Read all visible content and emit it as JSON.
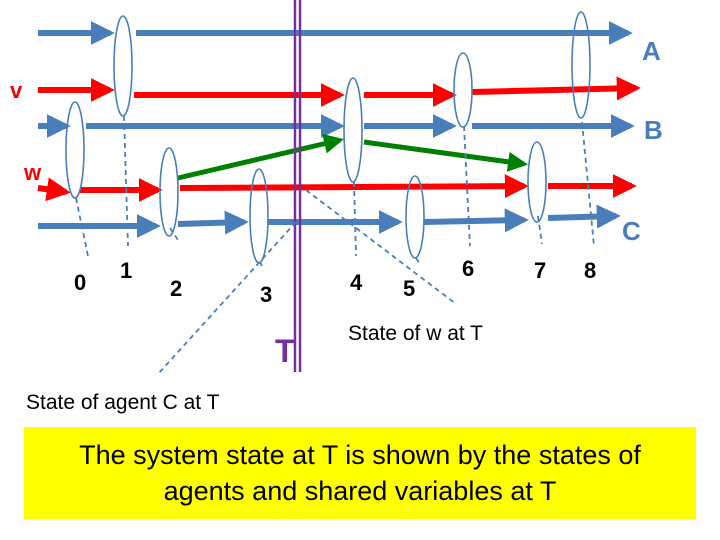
{
  "lines": {
    "A": {
      "label": "A",
      "color": "#4a7ebb"
    },
    "v": {
      "label": "v",
      "color": "#ff0000"
    },
    "B": {
      "label": "B",
      "color": "#4a7ebb"
    },
    "w": {
      "label": "w",
      "color": "#ff0000"
    },
    "C": {
      "label": "C",
      "color": "#4a7ebb"
    }
  },
  "events": [
    "0",
    "1",
    "2",
    "3",
    "4",
    "5",
    "6",
    "7",
    "8"
  ],
  "cut": {
    "label": "T",
    "color": "#7030a0"
  },
  "notes": {
    "state_w": "State of w at T",
    "state_c": "State of agent C at T"
  },
  "caption": "The system state at T is shown by the states of agents and shared variables at T",
  "colors": {
    "agent": "#4a7ebb",
    "variable": "#ff0000",
    "message": "#008000",
    "caption_bg": "#ffff00"
  }
}
